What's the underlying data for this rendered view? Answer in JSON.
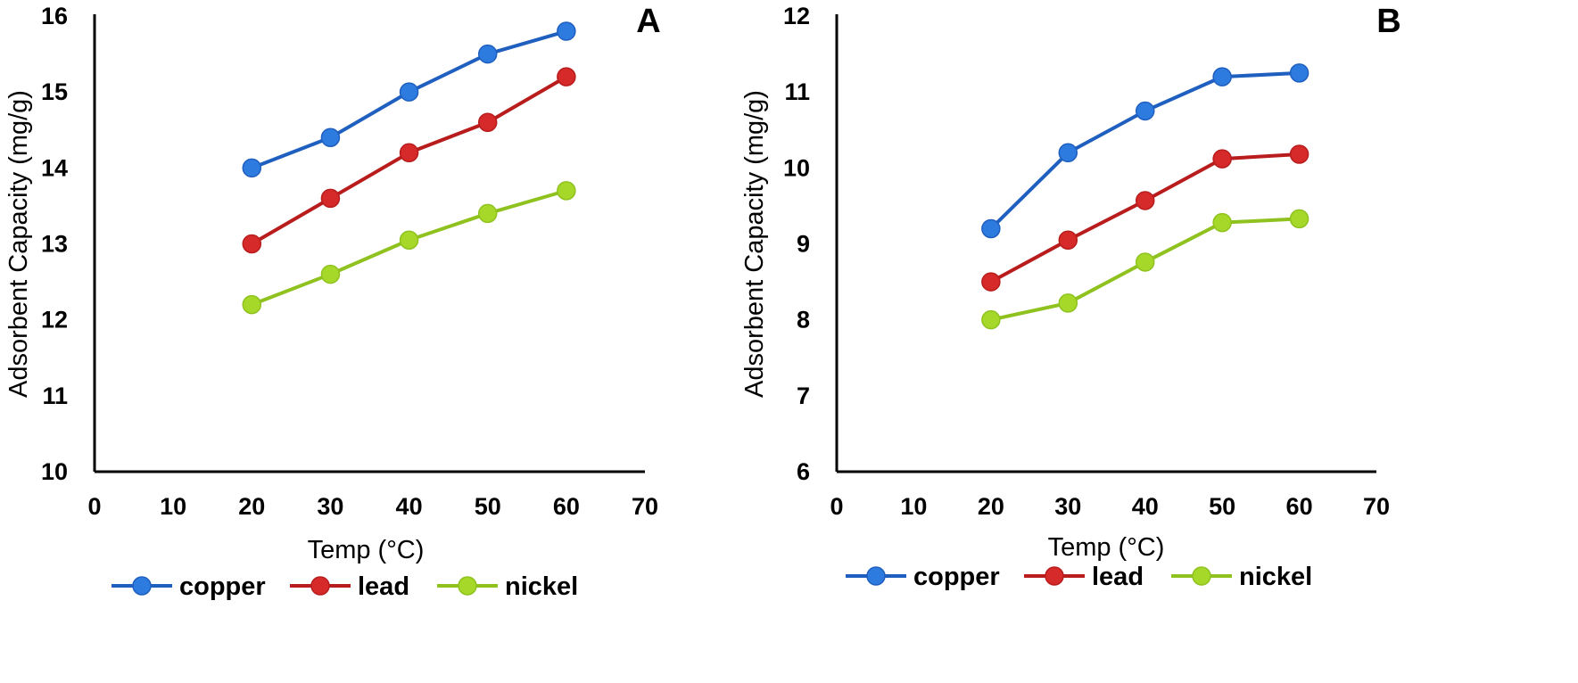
{
  "chart_data": [
    {
      "type": "line",
      "panel_label": "A",
      "xlabel": "Temp (°C)",
      "ylabel": "Adsorbent Capacity (mg/g)",
      "xlim": [
        0,
        70
      ],
      "ylim": [
        10,
        16
      ],
      "x_ticks": [
        0,
        10,
        20,
        30,
        40,
        50,
        60,
        70
      ],
      "y_ticks": [
        10,
        11,
        12,
        13,
        14,
        15,
        16
      ],
      "x": [
        20,
        30,
        40,
        50,
        60
      ],
      "grid": false,
      "legend_position": "bottom",
      "series": [
        {
          "name": "copper",
          "color": "#1f5fbf",
          "marker_color": "#2e7be0",
          "values": [
            14.0,
            14.4,
            15.0,
            15.5,
            15.8
          ]
        },
        {
          "name": "lead",
          "color": "#b81c1c",
          "marker_color": "#d62a2a",
          "values": [
            13.0,
            13.6,
            14.2,
            14.6,
            15.2
          ]
        },
        {
          "name": "nickel",
          "color": "#8fc21f",
          "marker_color": "#a6d82a",
          "values": [
            12.2,
            12.6,
            13.05,
            13.4,
            13.7
          ]
        }
      ]
    },
    {
      "type": "line",
      "panel_label": "B",
      "xlabel": "Temp (°C)",
      "ylabel": "Adsorbent Capacity (mg/g)",
      "xlim": [
        0,
        70
      ],
      "ylim": [
        6,
        12
      ],
      "x_ticks": [
        0,
        10,
        20,
        30,
        40,
        50,
        60,
        70
      ],
      "y_ticks": [
        6,
        7,
        8,
        9,
        10,
        11,
        12
      ],
      "x": [
        20,
        30,
        40,
        50,
        60
      ],
      "grid": false,
      "legend_position": "bottom",
      "series": [
        {
          "name": "copper",
          "color": "#1f5fbf",
          "marker_color": "#2e7be0",
          "values": [
            9.2,
            10.2,
            10.75,
            11.2,
            11.25
          ]
        },
        {
          "name": "lead",
          "color": "#b81c1c",
          "marker_color": "#d62a2a",
          "values": [
            8.5,
            9.05,
            9.57,
            10.12,
            10.18
          ]
        },
        {
          "name": "nickel",
          "color": "#8fc21f",
          "marker_color": "#a6d82a",
          "values": [
            8.0,
            8.22,
            8.76,
            9.28,
            9.33
          ]
        }
      ]
    }
  ]
}
